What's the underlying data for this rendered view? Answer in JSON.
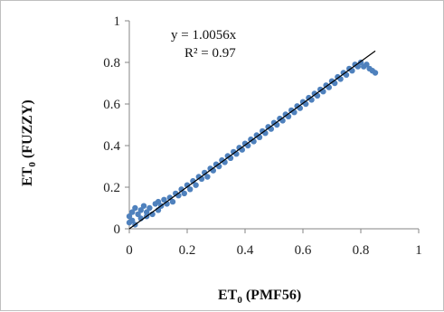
{
  "chart_data": {
    "type": "scatter",
    "xlabel_main": "ET",
    "xlabel_sub": "0",
    "xlabel_rest": " (PMF56)",
    "ylabel_main": "ET",
    "ylabel_sub": "0",
    "ylabel_rest": " (FUZZY)",
    "xlim": [
      0,
      1
    ],
    "ylim": [
      0,
      1
    ],
    "xticks": [
      "0",
      "0.2",
      "0.4",
      "0.6",
      "0.8",
      "1"
    ],
    "yticks": [
      "0",
      "0.2",
      "0.4",
      "0.6",
      "0.8",
      "1"
    ],
    "xtick_values": [
      0,
      0.2,
      0.4,
      0.6,
      0.8,
      1
    ],
    "ytick_values": [
      0,
      0.2,
      0.4,
      0.6,
      0.8,
      1
    ],
    "grid": false,
    "point_color": "#4f81bd",
    "trendline_color": "#000000",
    "trendline": {
      "equation": "y = 1.0056x",
      "r2": "R² = 0.97",
      "slope": 1.0056,
      "x_range": [
        0,
        0.85
      ]
    },
    "series": [
      {
        "points": [
          [
            0.0,
            0.03
          ],
          [
            0.0,
            0.06
          ],
          [
            0.01,
            0.08
          ],
          [
            0.01,
            0.04
          ],
          [
            0.02,
            0.1
          ],
          [
            0.02,
            0.02
          ],
          [
            0.03,
            0.07
          ],
          [
            0.04,
            0.05
          ],
          [
            0.04,
            0.09
          ],
          [
            0.05,
            0.11
          ],
          [
            0.06,
            0.06
          ],
          [
            0.06,
            0.08
          ],
          [
            0.07,
            0.1
          ],
          [
            0.08,
            0.07
          ],
          [
            0.09,
            0.12
          ],
          [
            0.1,
            0.09
          ],
          [
            0.1,
            0.13
          ],
          [
            0.11,
            0.11
          ],
          [
            0.12,
            0.14
          ],
          [
            0.13,
            0.12
          ],
          [
            0.14,
            0.15
          ],
          [
            0.15,
            0.13
          ],
          [
            0.16,
            0.17
          ],
          [
            0.17,
            0.16
          ],
          [
            0.18,
            0.19
          ],
          [
            0.19,
            0.17
          ],
          [
            0.2,
            0.21
          ],
          [
            0.21,
            0.19
          ],
          [
            0.22,
            0.23
          ],
          [
            0.23,
            0.21
          ],
          [
            0.24,
            0.25
          ],
          [
            0.25,
            0.24
          ],
          [
            0.26,
            0.27
          ],
          [
            0.27,
            0.25
          ],
          [
            0.28,
            0.29
          ],
          [
            0.29,
            0.28
          ],
          [
            0.3,
            0.31
          ],
          [
            0.31,
            0.3
          ],
          [
            0.32,
            0.33
          ],
          [
            0.33,
            0.32
          ],
          [
            0.34,
            0.35
          ],
          [
            0.35,
            0.34
          ],
          [
            0.36,
            0.37
          ],
          [
            0.37,
            0.36
          ],
          [
            0.38,
            0.39
          ],
          [
            0.39,
            0.38
          ],
          [
            0.4,
            0.41
          ],
          [
            0.41,
            0.4
          ],
          [
            0.42,
            0.43
          ],
          [
            0.43,
            0.42
          ],
          [
            0.44,
            0.45
          ],
          [
            0.45,
            0.44
          ],
          [
            0.46,
            0.47
          ],
          [
            0.47,
            0.46
          ],
          [
            0.48,
            0.49
          ],
          [
            0.49,
            0.48
          ],
          [
            0.5,
            0.51
          ],
          [
            0.51,
            0.5
          ],
          [
            0.52,
            0.53
          ],
          [
            0.53,
            0.52
          ],
          [
            0.54,
            0.55
          ],
          [
            0.55,
            0.54
          ],
          [
            0.56,
            0.57
          ],
          [
            0.57,
            0.56
          ],
          [
            0.58,
            0.59
          ],
          [
            0.59,
            0.58
          ],
          [
            0.6,
            0.61
          ],
          [
            0.61,
            0.6
          ],
          [
            0.62,
            0.63
          ],
          [
            0.63,
            0.62
          ],
          [
            0.64,
            0.65
          ],
          [
            0.65,
            0.64
          ],
          [
            0.66,
            0.67
          ],
          [
            0.67,
            0.66
          ],
          [
            0.68,
            0.69
          ],
          [
            0.69,
            0.68
          ],
          [
            0.7,
            0.71
          ],
          [
            0.71,
            0.7
          ],
          [
            0.72,
            0.73
          ],
          [
            0.73,
            0.72
          ],
          [
            0.74,
            0.75
          ],
          [
            0.75,
            0.74
          ],
          [
            0.76,
            0.77
          ],
          [
            0.77,
            0.76
          ],
          [
            0.78,
            0.79
          ],
          [
            0.79,
            0.78
          ],
          [
            0.8,
            0.8
          ],
          [
            0.81,
            0.78
          ],
          [
            0.82,
            0.79
          ],
          [
            0.83,
            0.77
          ],
          [
            0.84,
            0.76
          ],
          [
            0.85,
            0.75
          ]
        ]
      }
    ]
  }
}
